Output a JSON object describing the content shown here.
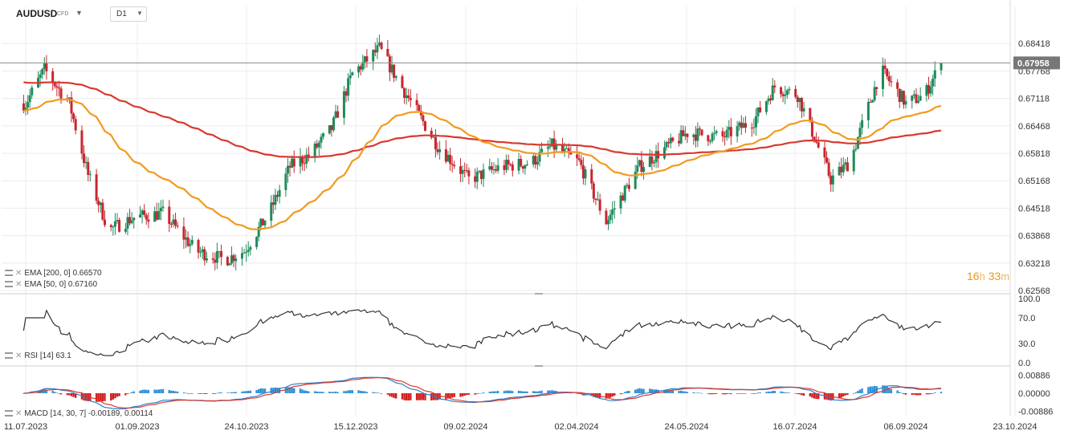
{
  "header": {
    "symbol": "AUDUSD",
    "instrument_type": "CFD",
    "timeframe": "D1"
  },
  "legend": {
    "ema200_name": "EMA",
    "ema200_params": "[200,  0]",
    "ema200_value": "0.66570",
    "ema50_name": "EMA",
    "ema50_params": "[50,  0]",
    "ema50_value": "0.67160",
    "rsi_name": "RSI",
    "rsi_params": "[14]",
    "rsi_value": "63.1",
    "macd_name": "MACD",
    "macd_params": "[14, 30, 7]",
    "macd_value1": "-0.00189,",
    "macd_value2": "0.00114"
  },
  "timer": {
    "hours": "16",
    "h_unit": "h",
    "minutes": "33",
    "m_unit": "m"
  },
  "colors": {
    "bull": "#1f8a5b",
    "bear": "#c8262f",
    "ema50": "#f39a1d",
    "ema200": "#d8392f",
    "rsi_line": "#333333",
    "macd_line": "#2f7fc9",
    "signal_line": "#d8392f",
    "hist_pos": "#2f8fd6",
    "hist_neg": "#d11f1f",
    "price_tag": "#777777",
    "grid": "#ececec"
  },
  "chart_data": [
    {
      "type": "candlestick",
      "symbol": "AUDUSD",
      "timeframe": "D1",
      "last_price": "0.67958",
      "ylim": [
        0.62568,
        0.69068
      ],
      "y_ticks": [
        "0.68418",
        "0.67768",
        "0.67118",
        "0.66468",
        "0.65818",
        "0.65168",
        "0.64518",
        "0.63868",
        "0.63218",
        "0.62568"
      ],
      "x_ticks": [
        "11.07.2023",
        "01.09.2023",
        "24.10.2023",
        "15.12.2023",
        "09.02.2024",
        "02.04.2024",
        "24.05.2024",
        "16.07.2024",
        "06.09.2024",
        "23.10.2024"
      ],
      "approx_close_path": [
        [
          "11.07.2023",
          0.67
        ],
        [
          "20.07.2023",
          0.678
        ],
        [
          "01.08.2023",
          0.67
        ],
        [
          "10.08.2023",
          0.653
        ],
        [
          "20.08.2023",
          0.64
        ],
        [
          "01.09.2023",
          0.643
        ],
        [
          "15.09.2023",
          0.644
        ],
        [
          "01.10.2023",
          0.635
        ],
        [
          "15.10.2023",
          0.633
        ],
        [
          "24.10.2023",
          0.635
        ],
        [
          "05.11.2023",
          0.644
        ],
        [
          "15.11.2023",
          0.655
        ],
        [
          "25.11.2023",
          0.658
        ],
        [
          "05.12.2023",
          0.664
        ],
        [
          "15.12.2023",
          0.677
        ],
        [
          "28.12.2023",
          0.683
        ],
        [
          "10.01.2024",
          0.672
        ],
        [
          "25.01.2024",
          0.66
        ],
        [
          "09.02.2024",
          0.652
        ],
        [
          "25.02.2024",
          0.655
        ],
        [
          "10.03.2024",
          0.656
        ],
        [
          "20.03.2024",
          0.66
        ],
        [
          "02.04.2024",
          0.656
        ],
        [
          "15.04.2024",
          0.642
        ],
        [
          "01.05.2024",
          0.655
        ],
        [
          "24.05.2024",
          0.663
        ],
        [
          "10.06.2024",
          0.662
        ],
        [
          "25.06.2024",
          0.666
        ],
        [
          "05.07.2024",
          0.674
        ],
        [
          "16.07.2024",
          0.672
        ],
        [
          "01.08.2024",
          0.652
        ],
        [
          "10.08.2024",
          0.656
        ],
        [
          "25.08.2024",
          0.678
        ],
        [
          "06.09.2024",
          0.67
        ],
        [
          "15.09.2024",
          0.672
        ],
        [
          "23.09.2024",
          0.6796
        ]
      ]
    },
    {
      "type": "line",
      "name": "RSI [14]",
      "ylim": [
        0,
        100
      ],
      "y_ticks": [
        "100.0",
        "70.0",
        "30.0",
        "0.0"
      ],
      "last_value": 63.1
    },
    {
      "type": "bar",
      "name": "MACD [14, 30, 7]",
      "y_ticks": [
        "0.00886",
        "0.00000",
        "-0.00886"
      ]
    }
  ]
}
